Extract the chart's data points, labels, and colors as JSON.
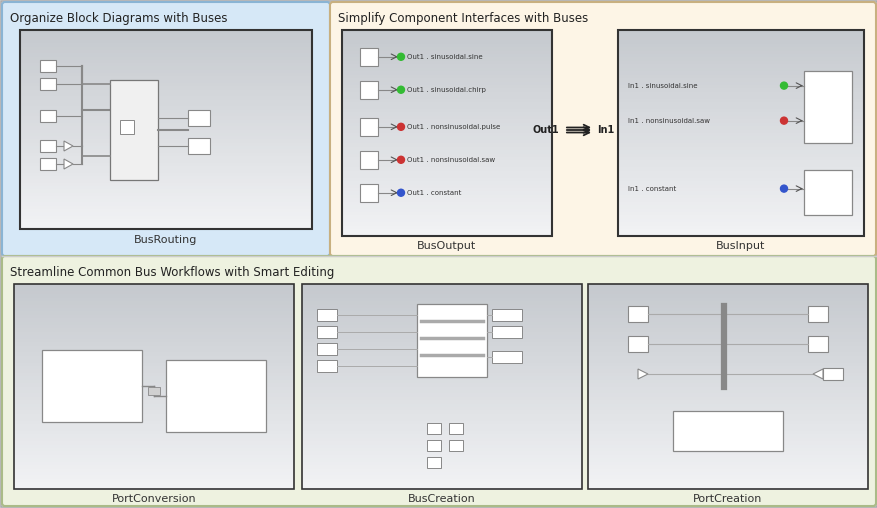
{
  "panel1_title": "Organize Block Diagrams with Buses",
  "panel1_bg": "#d6e8f7",
  "panel1_label": "BusRouting",
  "panel2_title": "Simplify Component Interfaces with Buses",
  "panel2_bg": "#fdf5e6",
  "panel2_label1": "BusOutput",
  "panel2_label2": "BusInput",
  "panel3_title": "Streamline Common Bus Workflows with Smart Editing",
  "panel3_bg": "#eef2e0",
  "panel3_label1": "PortConversion",
  "panel3_label2": "BusCreation",
  "panel3_label3": "PortCreation",
  "grad_top": "#c5c9ce",
  "grad_bottom": "#f2f3f5",
  "bus_signals": [
    {
      "label": "Out1 . sinusoidal.sine",
      "color": "#33bb33"
    },
    {
      "label": "Out1 . sinusoidal.chirp",
      "color": "#33bb33"
    },
    {
      "label": "Out1 . nonsinusoidal.pulse",
      "color": "#cc3333"
    },
    {
      "label": "Out1 . nonsinusoidal.saw",
      "color": "#cc3333"
    },
    {
      "label": "Out1 . constant",
      "color": "#3355cc"
    }
  ],
  "bus_input_signals": [
    {
      "label": "In1 . sinusoidal.sine",
      "color": "#33bb33"
    },
    {
      "label": "In1 . nonsinusoidal.saw",
      "color": "#cc3333"
    },
    {
      "label": "In1 . constant",
      "color": "#3355cc"
    }
  ]
}
